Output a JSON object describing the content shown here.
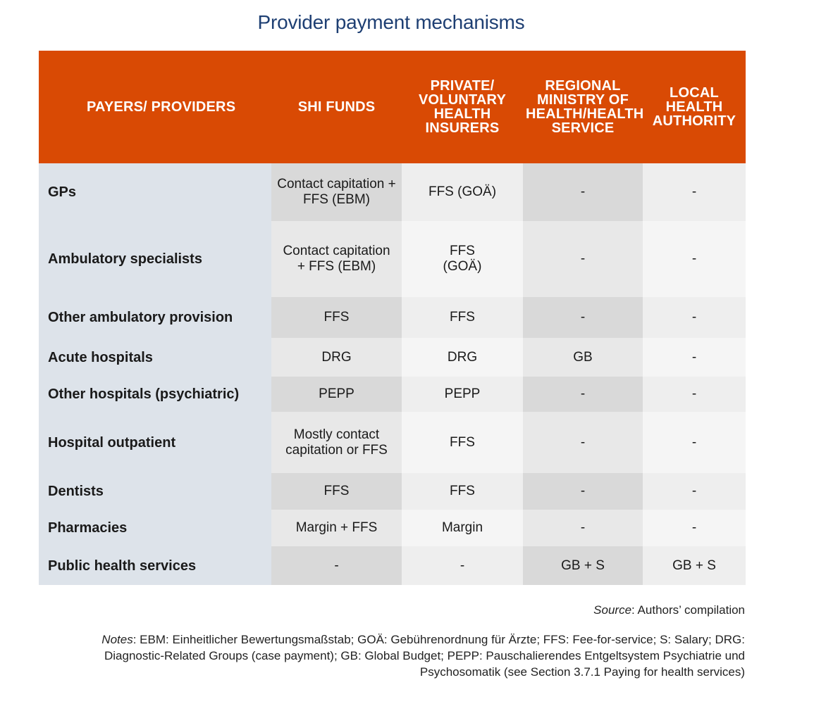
{
  "title": "Provider payment mechanisms",
  "table": {
    "headers": [
      "PAYERS/ PROVIDERS",
      "SHI FUNDS",
      "PRIVATE/ VOLUNTARY HEALTH INSURERS",
      "REGIONAL MINISTRY OF HEALTH/HEALTH SERVICE",
      "LOCAL HEALTH AUTHORITY"
    ],
    "rows": [
      [
        "GPs",
        "Contact capitation + FFS (EBM)",
        "FFS (GOÄ)",
        "-",
        "-"
      ],
      [
        "Ambulatory specialists",
        "Contact capitation + FFS (EBM)",
        "FFS (GOÄ)",
        "-",
        "-"
      ],
      [
        "Other ambulatory provision",
        "FFS",
        "FFS",
        "-",
        "-"
      ],
      [
        "Acute hospitals",
        "DRG",
        "DRG",
        "GB",
        "-"
      ],
      [
        "Other hospitals (psychiatric)",
        "PEPP",
        "PEPP",
        "-",
        "-"
      ],
      [
        "Hospital outpatient",
        "Mostly contact capitation or FFS",
        "FFS",
        "-",
        "-"
      ],
      [
        "Dentists",
        "FFS",
        "FFS",
        "-",
        "-"
      ],
      [
        "Pharmacies",
        "Margin + FFS",
        "Margin",
        "-",
        "-"
      ],
      [
        "Public health services",
        "-",
        "-",
        "GB + S",
        "GB + S"
      ]
    ]
  },
  "source_label": "Source",
  "source_text": ": Authors’ compilation",
  "notes_label": "Notes",
  "notes_text": ": EBM: Einheitlicher Bewertungsmaßstab; GOÄ: Gebührenordnung für Ärzte; FFS: Fee-for-service; S: Salary; DRG: Diagnostic-Related Groups (case payment); GB: Global Budget; PEPP: Pauschalierendes Entgeltsystem Psychiatrie und Psychosomatik (see Section 3.7.1 Paying for health services)",
  "colors": {
    "header_bg": "#d94a04",
    "title": "#1e3f73",
    "rowhead_bg": "#dde3ea"
  }
}
